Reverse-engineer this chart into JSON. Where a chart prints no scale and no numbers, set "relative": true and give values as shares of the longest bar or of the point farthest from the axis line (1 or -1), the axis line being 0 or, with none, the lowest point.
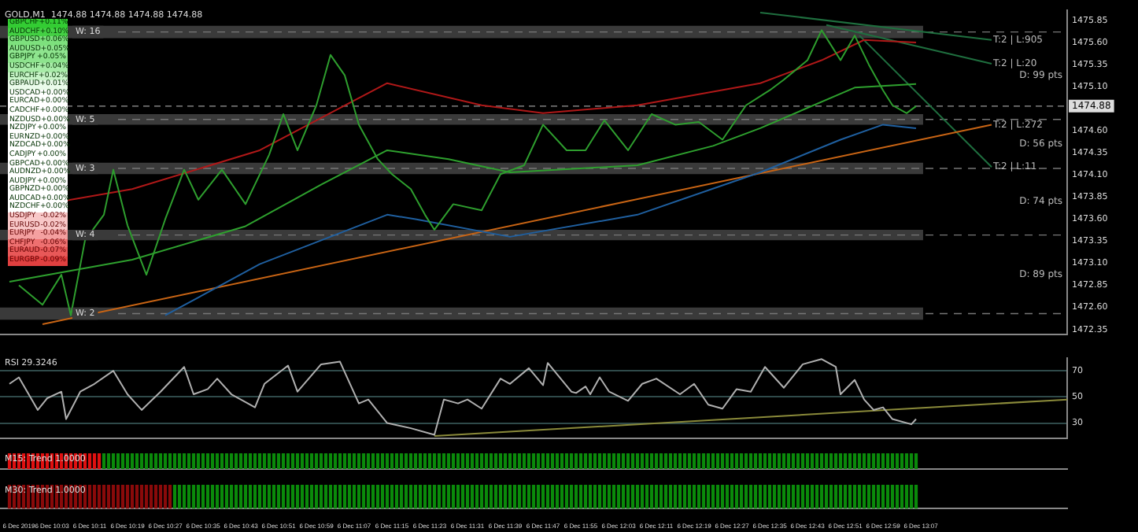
{
  "chart_data": [
    {
      "type": "line",
      "title": "GOLD,M1  1474.88 1474.88 1474.88 1474.88",
      "xlim": [
        "2019-12-06T09:52",
        "2019-12-06T13:38"
      ],
      "ylim": [
        1472.29,
        1475.97
      ],
      "yticks": [
        1475.85,
        {
          "value": 1475.6,
          "label": "1475.60"
        },
        1475.35,
        {
          "value": 1475.1,
          "label": "1475.10"
        },
        {
          "value": 1474.6,
          "label": "1474.60"
        },
        1474.35,
        {
          "value": 1474.1,
          "label": "1474.10"
        },
        1473.85,
        {
          "value": 1473.6,
          "label": "1473.60"
        },
        1473.35,
        {
          "value": 1473.1,
          "label": "1473.10"
        },
        1472.85,
        {
          "value": 1472.6,
          "label": "1472.60"
        },
        1472.35
      ],
      "tick_labels": "y",
      "grid": false,
      "legend": false,
      "marker": "none",
      "line_style": "solid",
      "series": [
        {
          "color": "#2e9e2e",
          "x": [
            "2019-12-06T09:56",
            "2019-12-06T10:01",
            "2019-12-06T10:05",
            "2019-12-06T10:07",
            "2019-12-06T10:10",
            "2019-12-06T10:14",
            "2019-12-06T10:16",
            "2019-12-06T10:19",
            "2019-12-06T10:23",
            "2019-12-06T10:27",
            "2019-12-06T10:31",
            "2019-12-06T10:34",
            "2019-12-06T10:39",
            "2019-12-06T10:44",
            "2019-12-06T10:49",
            "2019-12-06T10:52",
            "2019-12-06T10:55",
            "2019-12-06T10:59",
            "2019-12-06T11:02",
            "2019-12-06T11:05",
            "2019-12-06T11:08",
            "2019-12-06T11:12",
            "2019-12-06T11:15",
            "2019-12-06T11:19",
            "2019-12-06T11:22",
            "2019-12-06T11:24",
            "2019-12-06T11:28",
            "2019-12-06T11:34",
            "2019-12-06T11:38",
            "2019-12-06T11:43",
            "2019-12-06T11:47",
            "2019-12-06T11:52",
            "2019-12-06T11:56",
            "2019-12-06T12:00",
            "2019-12-06T12:05",
            "2019-12-06T12:10",
            "2019-12-06T12:15",
            "2019-12-06T12:20",
            "2019-12-06T12:25",
            "2019-12-06T12:30",
            "2019-12-06T12:35",
            "2019-12-06T12:38",
            "2019-12-06T12:43",
            "2019-12-06T12:46",
            "2019-12-06T12:50",
            "2019-12-06T12:53",
            "2019-12-06T12:56",
            "2019-12-06T12:59",
            "2019-12-06T13:01",
            "2019-12-06T13:04",
            "2019-12-06T13:06"
          ],
          "values": [
            1472.85,
            1472.63,
            1472.97,
            1472.51,
            1473.36,
            1473.65,
            1474.16,
            1473.53,
            1472.97,
            1473.6,
            1474.16,
            1473.82,
            1474.16,
            1473.77,
            1474.33,
            1474.79,
            1474.38,
            1474.89,
            1475.46,
            1475.23,
            1474.67,
            1474.28,
            1474.11,
            1473.94,
            1473.65,
            1473.48,
            1473.77,
            1473.7,
            1474.11,
            1474.21,
            1474.67,
            1474.38,
            1474.38,
            1474.72,
            1474.38,
            1474.79,
            1474.67,
            1474.7,
            1474.5,
            1474.89,
            1475.06,
            1475.18,
            1475.4,
            1475.74,
            1475.4,
            1475.68,
            1475.35,
            1475.06,
            1474.89,
            1474.8,
            1474.88
          ]
        },
        {
          "color": "#b01818",
          "x": [
            "2019-12-06T09:54",
            "2019-12-06T10:20",
            "2019-12-06T10:47",
            "2019-12-06T11:14",
            "2019-12-06T11:34",
            "2019-12-06T11:47",
            "2019-12-06T12:07",
            "2019-12-06T12:33",
            "2019-12-06T12:46",
            "2019-12-06T12:55",
            "2019-12-06T13:06"
          ],
          "values": [
            1473.7,
            1473.94,
            1474.38,
            1475.14,
            1474.89,
            1474.8,
            1474.89,
            1475.14,
            1475.4,
            1475.63,
            1475.6
          ]
        },
        {
          "color": "#2ea02e",
          "x": [
            "2019-12-06T09:54",
            "2019-12-06T10:20",
            "2019-12-06T10:44",
            "2019-12-06T11:00",
            "2019-12-06T11:14",
            "2019-12-06T11:27",
            "2019-12-06T11:40",
            "2019-12-06T12:07",
            "2019-12-06T12:23",
            "2019-12-06T12:33",
            "2019-12-06T12:53",
            "2019-12-06T13:06"
          ],
          "values": [
            1472.89,
            1473.14,
            1473.52,
            1473.99,
            1474.38,
            1474.28,
            1474.13,
            1474.21,
            1474.43,
            1474.63,
            1475.09,
            1475.13
          ]
        },
        {
          "color": "#1f5f9f",
          "x": [
            "2019-12-06T10:27",
            "2019-12-06T10:47",
            "2019-12-06T11:14",
            "2019-12-06T11:20",
            "2019-12-06T11:40",
            "2019-12-06T12:07",
            "2019-12-06T12:33",
            "2019-12-06T12:50",
            "2019-12-06T12:59",
            "2019-12-06T13:06"
          ],
          "values": [
            1472.51,
            1473.09,
            1473.65,
            1473.6,
            1473.4,
            1473.65,
            1474.13,
            1474.5,
            1474.67,
            1474.63
          ]
        },
        {
          "color": "#c86414",
          "x": [
            "2019-12-06T10:01",
            "2019-12-06T13:22"
          ],
          "values": [
            1472.41,
            1474.67
          ]
        },
        {
          "color": "#1f6f3f",
          "x": [
            "2019-12-06T12:33",
            "2019-12-06T13:22"
          ],
          "values": [
            1475.94,
            1475.63
          ]
        },
        {
          "color": "#1f6f3f",
          "x": [
            "2019-12-06T12:47",
            "2019-12-06T13:22"
          ],
          "values": [
            1475.8,
            1475.36
          ]
        },
        {
          "color": "#1f6f3f",
          "x": [
            "2019-12-06T12:54",
            "2019-12-06T13:22"
          ],
          "values": [
            1475.68,
            1474.19
          ]
        }
      ],
      "bands": [
        {
          "axis": "y",
          "from": 1475.65,
          "to": 1475.79,
          "label": "W: 16",
          "color": "#3a3a3a"
        },
        {
          "axis": "y",
          "from": 1474.67,
          "to": 1474.79,
          "label": "W: 5",
          "color": "#3a3a3a"
        },
        {
          "axis": "y",
          "from": 1474.11,
          "to": 1474.24,
          "label": "W: 3",
          "color": "#3a3a3a"
        },
        {
          "axis": "y",
          "from": 1473.36,
          "to": 1473.48,
          "label": "W: 4",
          "color": "#3a3a3a"
        },
        {
          "axis": "y",
          "from": 1472.46,
          "to": 1472.6,
          "label": "W: 2",
          "color": "#3a3a3a"
        }
      ],
      "ref_lines": [
        {
          "axis": "y",
          "value": 1474.88,
          "label": "1474.88",
          "color": "#9a9a9a",
          "line_style": "dashed"
        }
      ],
      "annotations": [
        "D: 99 pts",
        "D: 56 pts",
        "D: 74 pts",
        "D: 89 pts",
        {
          "text": "T:2 | L:905",
          "x": "2019-12-06T13:22",
          "y": 1475.63
        },
        {
          "text": "T:2 | L:20",
          "x": "2019-12-06T13:22",
          "y": 1475.36
        },
        {
          "text": "T:2 | L:272",
          "x": "2019-12-06T13:22",
          "y": 1474.67
        },
        {
          "text": "T:2 | L:11",
          "x": "2019-12-06T13:22",
          "y": 1474.19
        }
      ]
    },
    {
      "type": "line",
      "title": "RSI 29.3246",
      "xlim": [
        "2019-12-06T09:52",
        "2019-12-06T13:38"
      ],
      "ylim": [
        18,
        80
      ],
      "yticks": [
        30,
        50,
        70
      ],
      "tick_labels": "y",
      "grid": "y",
      "legend": false,
      "marker": "none",
      "series": [
        {
          "color": "#b0b0b0",
          "x": [
            "2019-12-06T09:54",
            "2019-12-06T09:56",
            "2019-12-06T10:00",
            "2019-12-06T10:02",
            "2019-12-06T10:05",
            "2019-12-06T10:06",
            "2019-12-06T10:09",
            "2019-12-06T10:12",
            "2019-12-06T10:16",
            "2019-12-06T10:19",
            "2019-12-06T10:22",
            "2019-12-06T10:26",
            "2019-12-06T10:31",
            "2019-12-06T10:33",
            "2019-12-06T10:36",
            "2019-12-06T10:38",
            "2019-12-06T10:41",
            "2019-12-06T10:46",
            "2019-12-06T10:48",
            "2019-12-06T10:53",
            "2019-12-06T10:55",
            "2019-12-06T11:00",
            "2019-12-06T11:04",
            "2019-12-06T11:08",
            "2019-12-06T11:10",
            "2019-12-06T11:14",
            "2019-12-06T11:19",
            "2019-12-06T11:24",
            "2019-12-06T11:26",
            "2019-12-06T11:29",
            "2019-12-06T11:31",
            "2019-12-06T11:34",
            "2019-12-06T11:38",
            "2019-12-06T11:40",
            "2019-12-06T11:44",
            "2019-12-06T11:47",
            "2019-12-06T11:48",
            "2019-12-06T11:53",
            "2019-12-06T11:54",
            "2019-12-06T11:56",
            "2019-12-06T11:57",
            "2019-12-06T11:59",
            "2019-12-06T12:01",
            "2019-12-06T12:05",
            "2019-12-06T12:08",
            "2019-12-06T12:11",
            "2019-12-06T12:16",
            "2019-12-06T12:19",
            "2019-12-06T12:22",
            "2019-12-06T12:25",
            "2019-12-06T12:28",
            "2019-12-06T12:31",
            "2019-12-06T12:34",
            "2019-12-06T12:38",
            "2019-12-06T12:42",
            "2019-12-06T12:46",
            "2019-12-06T12:49",
            "2019-12-06T12:50",
            "2019-12-06T12:53",
            "2019-12-06T12:55",
            "2019-12-06T12:57",
            "2019-12-06T12:59",
            "2019-12-06T13:01",
            "2019-12-06T13:05",
            "2019-12-06T13:06"
          ],
          "values": [
            60,
            65,
            40,
            49,
            54,
            33,
            54,
            60,
            70,
            52,
            40,
            54,
            73,
            52,
            56,
            64,
            52,
            42,
            60,
            74,
            54,
            75,
            77,
            45,
            48,
            30,
            26,
            21,
            48,
            45,
            48,
            41,
            64,
            60,
            72,
            59,
            76,
            54,
            53,
            58,
            52,
            65,
            54,
            47,
            60,
            64,
            52,
            60,
            44,
            41,
            56,
            54,
            73,
            57,
            75,
            79,
            73,
            52,
            63,
            48,
            40,
            42,
            33,
            29,
            33
          ]
        },
        {
          "color": "#8a8a3a",
          "x": [
            "2019-12-06T11:24",
            "2019-12-06T13:38"
          ],
          "values": [
            20,
            48
          ]
        }
      ]
    },
    {
      "type": "bar",
      "title": "M15: Trend 1.0000",
      "xlim": [
        "2019-12-06T09:52",
        "2019-12-06T13:38"
      ],
      "tick_labels": false,
      "relative": true,
      "x": [
        "2019-12-06T09:54",
        "2019-12-06T09:55",
        "2019-12-06T09:56",
        "2019-12-06T09:57",
        "2019-12-06T09:58",
        "2019-12-06T09:59",
        "2019-12-06T10:00",
        "2019-12-06T10:01",
        "2019-12-06T10:02",
        "2019-12-06T10:03",
        "2019-12-06T10:04",
        "2019-12-06T10:05",
        "2019-12-06T10:06",
        "2019-12-06T10:07",
        "2019-12-06T10:08",
        "2019-12-06T10:09",
        "2019-12-06T10:10",
        "2019-12-06T10:11",
        "2019-12-06T10:12",
        "2019-12-06T10:13",
        "2019-12-06T10:14",
        "2019-12-06T10:15",
        "2019-12-06T10:16",
        "2019-12-06T10:17",
        "2019-12-06T10:18",
        "2019-12-06T10:19",
        "2019-12-06T10:20",
        "2019-12-06T10:21",
        "2019-12-06T10:22",
        "2019-12-06T10:23",
        "2019-12-06T10:24",
        "2019-12-06T10:25",
        "2019-12-06T10:26",
        "2019-12-06T10:27",
        "2019-12-06T10:28",
        "2019-12-06T10:29",
        "2019-12-06T10:30",
        "2019-12-06T10:31",
        "2019-12-06T10:32",
        "2019-12-06T10:33",
        "2019-12-06T10:34",
        "2019-12-06T10:35",
        "2019-12-06T10:36",
        "2019-12-06T10:37",
        "2019-12-06T10:38",
        "2019-12-06T10:39",
        "2019-12-06T10:40",
        "2019-12-06T10:41",
        "2019-12-06T10:42",
        "2019-12-06T10:43",
        "2019-12-06T10:44",
        "2019-12-06T10:45",
        "2019-12-06T10:46",
        "2019-12-06T10:47",
        "2019-12-06T10:48",
        "2019-12-06T10:49",
        "2019-12-06T10:50",
        "2019-12-06T10:51",
        "2019-12-06T10:52",
        "2019-12-06T10:53",
        "2019-12-06T10:54",
        "2019-12-06T10:55",
        "2019-12-06T10:56",
        "2019-12-06T10:57",
        "2019-12-06T10:58",
        "2019-12-06T10:59",
        "2019-12-06T11:00",
        "2019-12-06T11:01",
        "2019-12-06T11:02",
        "2019-12-06T11:03",
        "2019-12-06T11:04",
        "2019-12-06T11:05",
        "2019-12-06T11:06",
        "2019-12-06T11:07",
        "2019-12-06T11:08",
        "2019-12-06T11:09",
        "2019-12-06T11:10",
        "2019-12-06T11:11",
        "2019-12-06T11:12",
        "2019-12-06T11:13",
        "2019-12-06T11:14",
        "2019-12-06T11:15",
        "2019-12-06T11:16",
        "2019-12-06T11:17",
        "2019-12-06T11:18",
        "2019-12-06T11:19",
        "2019-12-06T11:20",
        "2019-12-06T11:21",
        "2019-12-06T11:22",
        "2019-12-06T11:23",
        "2019-12-06T11:24",
        "2019-12-06T11:25",
        "2019-12-06T11:26",
        "2019-12-06T11:27",
        "2019-12-06T11:28",
        "2019-12-06T11:29",
        "2019-12-06T11:30",
        "2019-12-06T11:31",
        "2019-12-06T11:32",
        "2019-12-06T11:33",
        "2019-12-06T11:34",
        "2019-12-06T11:35",
        "2019-12-06T11:36",
        "2019-12-06T11:37",
        "2019-12-06T11:38",
        "2019-12-06T11:39",
        "2019-12-06T11:40",
        "2019-12-06T11:41",
        "2019-12-06T11:42",
        "2019-12-06T11:43",
        "2019-12-06T11:44",
        "2019-12-06T11:45",
        "2019-12-06T11:46",
        "2019-12-06T11:47",
        "2019-12-06T11:48",
        "2019-12-06T11:49",
        "2019-12-06T11:50",
        "2019-12-06T11:51",
        "2019-12-06T11:52",
        "2019-12-06T11:53",
        "2019-12-06T11:54",
        "2019-12-06T11:55",
        "2019-12-06T11:56",
        "2019-12-06T11:57",
        "2019-12-06T11:58",
        "2019-12-06T11:59",
        "2019-12-06T12:00",
        "2019-12-06T12:01",
        "2019-12-06T12:02",
        "2019-12-06T12:03",
        "2019-12-06T12:04",
        "2019-12-06T12:05",
        "2019-12-06T12:06",
        "2019-12-06T12:07",
        "2019-12-06T12:08",
        "2019-12-06T12:09",
        "2019-12-06T12:10",
        "2019-12-06T12:11",
        "2019-12-06T12:12",
        "2019-12-06T12:13",
        "2019-12-06T12:14",
        "2019-12-06T12:15",
        "2019-12-06T12:16",
        "2019-12-06T12:17",
        "2019-12-06T12:18",
        "2019-12-06T12:19",
        "2019-12-06T12:20",
        "2019-12-06T12:21",
        "2019-12-06T12:22",
        "2019-12-06T12:23",
        "2019-12-06T12:24",
        "2019-12-06T12:25",
        "2019-12-06T12:26",
        "2019-12-06T12:27",
        "2019-12-06T12:28",
        "2019-12-06T12:29",
        "2019-12-06T12:30",
        "2019-12-06T12:31",
        "2019-12-06T12:32",
        "2019-12-06T12:33",
        "2019-12-06T12:34",
        "2019-12-06T12:35",
        "2019-12-06T12:36",
        "2019-12-06T12:37",
        "2019-12-06T12:38",
        "2019-12-06T12:39",
        "2019-12-06T12:40",
        "2019-12-06T12:41",
        "2019-12-06T12:42",
        "2019-12-06T12:43",
        "2019-12-06T12:44",
        "2019-12-06T12:45",
        "2019-12-06T12:46",
        "2019-12-06T12:47",
        "2019-12-06T12:48",
        "2019-12-06T12:49",
        "2019-12-06T12:50",
        "2019-12-06T12:51",
        "2019-12-06T12:52",
        "2019-12-06T12:53",
        "2019-12-06T12:54",
        "2019-12-06T12:55",
        "2019-12-06T12:56",
        "2019-12-06T12:57",
        "2019-12-06T12:58",
        "2019-12-06T12:59",
        "2019-12-06T13:00",
        "2019-12-06T13:01",
        "2019-12-06T13:02",
        "2019-12-06T13:03",
        "2019-12-06T13:04",
        "2019-12-06T13:05",
        "2019-12-06T13:06"
      ],
      "values": [
        1,
        1,
        1,
        1,
        1,
        1,
        1,
        1,
        1,
        1,
        1,
        1,
        1,
        1,
        1,
        1,
        1,
        1,
        1,
        1,
        1,
        1,
        1,
        1,
        1,
        1,
        1,
        1,
        1,
        1,
        1,
        1,
        1,
        1,
        1,
        1,
        1,
        1,
        1,
        1,
        1,
        1,
        1,
        1,
        1,
        1,
        1,
        1,
        1,
        1,
        1,
        1,
        1,
        1,
        1,
        1,
        1,
        1,
        1,
        1,
        1,
        1,
        1,
        1,
        1,
        1,
        1,
        1,
        1,
        1,
        1,
        1,
        1,
        1,
        1,
        1,
        1,
        1,
        1,
        1,
        1,
        1,
        1,
        1,
        1,
        1,
        1,
        1,
        1,
        1,
        1,
        1,
        1,
        1,
        1,
        1,
        1,
        1,
        1,
        1,
        1,
        1,
        1,
        1,
        1,
        1,
        1,
        1,
        1,
        1,
        1,
        1,
        1,
        1,
        1,
        1,
        1,
        1,
        1,
        1,
        1,
        1,
        1,
        1,
        1,
        1,
        1,
        1,
        1,
        1,
        1,
        1,
        1,
        1,
        1,
        1,
        1,
        1,
        1,
        1,
        1,
        1,
        1,
        1,
        1,
        1,
        1,
        1,
        1,
        1,
        1,
        1,
        1,
        1,
        1,
        1,
        1,
        1,
        1,
        1,
        1,
        1,
        1,
        1,
        1,
        1,
        1,
        1,
        1,
        1,
        1,
        1,
        1,
        1,
        1,
        1,
        1,
        1,
        1,
        1,
        1,
        1,
        1,
        1,
        1,
        1,
        1,
        1,
        1,
        1,
        1,
        1,
        1
      ],
      "colors": [
        "#e01010",
        "#e01010",
        "#e01010",
        "#e01010",
        "#e01010",
        "#e01010",
        "#e01010",
        "#e01010",
        "#e01010",
        "#e01010",
        "#e01010",
        "#e01010",
        "#e01010",
        "#e01010",
        "#e01010",
        "#e01010",
        "#e01010",
        "#e01010",
        "#e01010",
        "#e01010",
        "#0a8a0a",
        "#0a8a0a",
        "#0a8a0a",
        "#0a8a0a",
        "#0a8a0a",
        "#0a8a0a",
        "#0a8a0a",
        "#0a8a0a",
        "#0a8a0a",
        "#0a8a0a",
        "#0a8a0a",
        "#0a8a0a",
        "#0a8a0a",
        "#0a8a0a",
        "#0a8a0a",
        "#0a8a0a",
        "#0a8a0a",
        "#0a8a0a",
        "#0a8a0a",
        "#0a8a0a",
        "#0a8a0a",
        "#0a8a0a",
        "#0a8a0a",
        "#0a8a0a",
        "#0a8a0a",
        "#0a8a0a",
        "#0a8a0a",
        "#0a8a0a",
        "#0a8a0a",
        "#0a8a0a",
        "#0a8a0a",
        "#0a8a0a",
        "#0a8a0a",
        "#0a8a0a",
        "#0a8a0a",
        "#0a8a0a",
        "#0a8a0a",
        "#0a8a0a",
        "#0a8a0a",
        "#0a8a0a",
        "#0a8a0a",
        "#0a8a0a",
        "#0a8a0a",
        "#0a8a0a",
        "#0a8a0a",
        "#0a8a0a",
        "#0a8a0a",
        "#0a8a0a",
        "#0a8a0a",
        "#0a8a0a",
        "#0a8a0a",
        "#0a8a0a",
        "#0a8a0a",
        "#0a8a0a",
        "#0a8a0a",
        "#0a8a0a",
        "#0a8a0a",
        "#0a8a0a",
        "#0a8a0a",
        "#0a8a0a",
        "#0a8a0a",
        "#0a8a0a",
        "#0a8a0a",
        "#0a8a0a",
        "#0a8a0a",
        "#0a8a0a",
        "#0a8a0a",
        "#0a8a0a",
        "#0a8a0a",
        "#0a8a0a",
        "#0a8a0a",
        "#0a8a0a",
        "#0a8a0a",
        "#0a8a0a",
        "#0a8a0a",
        "#0a8a0a",
        "#0a8a0a",
        "#0a8a0a",
        "#0a8a0a",
        "#0a8a0a",
        "#0a8a0a",
        "#0a8a0a",
        "#0a8a0a",
        "#0a8a0a",
        "#0a8a0a",
        "#0a8a0a",
        "#0a8a0a",
        "#0a8a0a",
        "#0a8a0a",
        "#0a8a0a",
        "#0a8a0a",
        "#0a8a0a",
        "#0a8a0a",
        "#0a8a0a",
        "#0a8a0a",
        "#0a8a0a",
        "#0a8a0a",
        "#0a8a0a",
        "#0a8a0a",
        "#0a8a0a",
        "#0a8a0a",
        "#0a8a0a",
        "#0a8a0a",
        "#0a8a0a",
        "#0a8a0a",
        "#0a8a0a",
        "#0a8a0a",
        "#0a8a0a",
        "#0a8a0a",
        "#0a8a0a",
        "#0a8a0a",
        "#0a8a0a",
        "#0a8a0a",
        "#0a8a0a",
        "#0a8a0a",
        "#0a8a0a",
        "#0a8a0a",
        "#0a8a0a",
        "#0a8a0a",
        "#0a8a0a",
        "#0a8a0a",
        "#0a8a0a",
        "#0a8a0a",
        "#0a8a0a",
        "#0a8a0a",
        "#0a8a0a",
        "#0a8a0a",
        "#0a8a0a",
        "#0a8a0a",
        "#0a8a0a",
        "#0a8a0a",
        "#0a8a0a",
        "#0a8a0a",
        "#0a8a0a",
        "#0a8a0a",
        "#0a8a0a",
        "#0a8a0a",
        "#0a8a0a",
        "#0a8a0a",
        "#0a8a0a",
        "#0a8a0a",
        "#0a8a0a",
        "#0a8a0a",
        "#0a8a0a",
        "#0a8a0a",
        "#0a8a0a",
        "#0a8a0a",
        "#0a8a0a",
        "#0a8a0a",
        "#0a8a0a",
        "#0a8a0a",
        "#0a8a0a",
        "#0a8a0a",
        "#0a8a0a",
        "#0a8a0a",
        "#0a8a0a",
        "#0a8a0a",
        "#0a8a0a",
        "#0a8a0a",
        "#0a8a0a",
        "#0a8a0a",
        "#0a8a0a",
        "#0a8a0a",
        "#0a8a0a",
        "#0a8a0a",
        "#0a8a0a",
        "#0a8a0a",
        "#0a8a0a",
        "#0a8a0a",
        "#0a8a0a",
        "#0a8a0a",
        "#0a8a0a",
        "#0a8a0a"
      ]
    },
    {
      "type": "bar",
      "title": "M30: Trend 1.0000",
      "xlim": [
        "2019-12-06T09:52",
        "2019-12-06T13:38"
      ],
      "tick_labels": "x",
      "relative": true,
      "x": [
        "2019-12-06T09:54",
        "2019-12-06T09:55",
        "2019-12-06T09:56",
        "2019-12-06T09:57",
        "2019-12-06T09:58",
        "2019-12-06T09:59",
        "2019-12-06T10:00",
        "2019-12-06T10:01",
        "2019-12-06T10:02",
        "2019-12-06T10:03",
        "2019-12-06T10:04",
        "2019-12-06T10:05",
        "2019-12-06T10:06",
        "2019-12-06T10:07",
        "2019-12-06T10:08",
        "2019-12-06T10:09",
        "2019-12-06T10:10",
        "2019-12-06T10:11",
        "2019-12-06T10:12",
        "2019-12-06T10:13",
        "2019-12-06T10:14",
        "2019-12-06T10:15",
        "2019-12-06T10:16",
        "2019-12-06T10:17",
        "2019-12-06T10:18",
        "2019-12-06T10:19",
        "2019-12-06T10:20",
        "2019-12-06T10:21",
        "2019-12-06T10:22",
        "2019-12-06T10:23",
        "2019-12-06T10:24",
        "2019-12-06T10:25",
        "2019-12-06T10:26",
        "2019-12-06T10:27",
        "2019-12-06T10:28",
        "2019-12-06T10:29",
        "2019-12-06T10:30",
        "2019-12-06T10:31",
        "2019-12-06T10:32",
        "2019-12-06T10:33",
        "2019-12-06T10:34",
        "2019-12-06T10:35",
        "2019-12-06T10:36",
        "2019-12-06T10:37",
        "2019-12-06T10:38",
        "2019-12-06T10:39",
        "2019-12-06T10:40",
        "2019-12-06T10:41",
        "2019-12-06T10:42",
        "2019-12-06T10:43",
        "2019-12-06T10:44",
        "2019-12-06T10:45",
        "2019-12-06T10:46",
        "2019-12-06T10:47",
        "2019-12-06T10:48",
        "2019-12-06T10:49",
        "2019-12-06T10:50",
        "2019-12-06T10:51",
        "2019-12-06T10:52",
        "2019-12-06T10:53",
        "2019-12-06T10:54",
        "2019-12-06T10:55",
        "2019-12-06T10:56",
        "2019-12-06T10:57",
        "2019-12-06T10:58",
        "2019-12-06T10:59",
        "2019-12-06T11:00",
        "2019-12-06T11:01",
        "2019-12-06T11:02",
        "2019-12-06T11:03",
        "2019-12-06T11:04",
        "2019-12-06T11:05",
        "2019-12-06T11:06",
        "2019-12-06T11:07",
        "2019-12-06T11:08",
        "2019-12-06T11:09",
        "2019-12-06T11:10",
        "2019-12-06T11:11",
        "2019-12-06T11:12",
        "2019-12-06T11:13",
        "2019-12-06T11:14",
        "2019-12-06T11:15",
        "2019-12-06T11:16",
        "2019-12-06T11:17",
        "2019-12-06T11:18",
        "2019-12-06T11:19",
        "2019-12-06T11:20",
        "2019-12-06T11:21",
        "2019-12-06T11:22",
        "2019-12-06T11:23",
        "2019-12-06T11:24",
        "2019-12-06T11:25",
        "2019-12-06T11:26",
        "2019-12-06T11:27",
        "2019-12-06T11:28",
        "2019-12-06T11:29",
        "2019-12-06T11:30",
        "2019-12-06T11:31",
        "2019-12-06T11:32",
        "2019-12-06T11:33",
        "2019-12-06T11:34",
        "2019-12-06T11:35",
        "2019-12-06T11:36",
        "2019-12-06T11:37",
        "2019-12-06T11:38",
        "2019-12-06T11:39",
        "2019-12-06T11:40",
        "2019-12-06T11:41",
        "2019-12-06T11:42",
        "2019-12-06T11:43",
        "2019-12-06T11:44",
        "2019-12-06T11:45",
        "2019-12-06T11:46",
        "2019-12-06T11:47",
        "2019-12-06T11:48",
        "2019-12-06T11:49",
        "2019-12-06T11:50",
        "2019-12-06T11:51",
        "2019-12-06T11:52",
        "2019-12-06T11:53",
        "2019-12-06T11:54",
        "2019-12-06T11:55",
        "2019-12-06T11:56",
        "2019-12-06T11:57",
        "2019-12-06T11:58",
        "2019-12-06T11:59",
        "2019-12-06T12:00",
        "2019-12-06T12:01",
        "2019-12-06T12:02",
        "2019-12-06T12:03",
        "2019-12-06T12:04",
        "2019-12-06T12:05",
        "2019-12-06T12:06",
        "2019-12-06T12:07",
        "2019-12-06T12:08",
        "2019-12-06T12:09",
        "2019-12-06T12:10",
        "2019-12-06T12:11",
        "2019-12-06T12:12",
        "2019-12-06T12:13",
        "2019-12-06T12:14",
        "2019-12-06T12:15",
        "2019-12-06T12:16",
        "2019-12-06T12:17",
        "2019-12-06T12:18",
        "2019-12-06T12:19",
        "2019-12-06T12:20",
        "2019-12-06T12:21",
        "2019-12-06T12:22",
        "2019-12-06T12:23",
        "2019-12-06T12:24",
        "2019-12-06T12:25",
        "2019-12-06T12:26",
        "2019-12-06T12:27",
        "2019-12-06T12:28",
        "2019-12-06T12:29",
        "2019-12-06T12:30",
        "2019-12-06T12:31",
        "2019-12-06T12:32",
        "2019-12-06T12:33",
        "2019-12-06T12:34",
        "2019-12-06T12:35",
        "2019-12-06T12:36",
        "2019-12-06T12:37",
        "2019-12-06T12:38",
        "2019-12-06T12:39",
        "2019-12-06T12:40",
        "2019-12-06T12:41",
        "2019-12-06T12:42",
        "2019-12-06T12:43",
        "2019-12-06T12:44",
        "2019-12-06T12:45",
        "2019-12-06T12:46",
        "2019-12-06T12:47",
        "2019-12-06T12:48",
        "2019-12-06T12:49",
        "2019-12-06T12:50",
        "2019-12-06T12:51",
        "2019-12-06T12:52",
        "2019-12-06T12:53",
        "2019-12-06T12:54",
        "2019-12-06T12:55",
        "2019-12-06T12:56",
        "2019-12-06T12:57",
        "2019-12-06T12:58",
        "2019-12-06T12:59",
        "2019-12-06T13:00",
        "2019-12-06T13:01",
        "2019-12-06T13:02",
        "2019-12-06T13:03",
        "2019-12-06T13:04",
        "2019-12-06T13:05",
        "2019-12-06T13:06"
      ],
      "values": [
        1,
        1,
        1,
        1,
        1,
        1,
        1,
        1,
        1,
        1,
        1,
        1,
        1,
        1,
        1,
        1,
        1,
        1,
        1,
        1,
        1,
        1,
        1,
        1,
        1,
        1,
        1,
        1,
        1,
        1,
        1,
        1,
        1,
        1,
        1,
        1,
        1,
        1,
        1,
        1,
        1,
        1,
        1,
        1,
        1,
        1,
        1,
        1,
        1,
        1,
        1,
        1,
        1,
        1,
        1,
        1,
        1,
        1,
        1,
        1,
        1,
        1,
        1,
        1,
        1,
        1,
        1,
        1,
        1,
        1,
        1,
        1,
        1,
        1,
        1,
        1,
        1,
        1,
        1,
        1,
        1,
        1,
        1,
        1,
        1,
        1,
        1,
        1,
        1,
        1,
        1,
        1,
        1,
        1,
        1,
        1,
        1,
        1,
        1,
        1,
        1,
        1,
        1,
        1,
        1,
        1,
        1,
        1,
        1,
        1,
        1,
        1,
        1,
        1,
        1,
        1,
        1,
        1,
        1,
        1,
        1,
        1,
        1,
        1,
        1,
        1,
        1,
        1,
        1,
        1,
        1,
        1,
        1,
        1,
        1,
        1,
        1,
        1,
        1,
        1,
        1,
        1,
        1,
        1,
        1,
        1,
        1,
        1,
        1,
        1,
        1,
        1,
        1,
        1,
        1,
        1,
        1,
        1,
        1,
        1,
        1,
        1,
        1,
        1,
        1,
        1,
        1,
        1,
        1,
        1,
        1,
        1,
        1,
        1,
        1,
        1,
        1,
        1,
        1,
        1,
        1,
        1,
        1,
        1,
        1,
        1,
        1,
        1,
        1,
        1,
        1,
        1,
        1
      ],
      "colors": [
        "#8a0a0a",
        "#8a0a0a",
        "#8a0a0a",
        "#8a0a0a",
        "#8a0a0a",
        "#8a0a0a",
        "#8a0a0a",
        "#8a0a0a",
        "#8a0a0a",
        "#8a0a0a",
        "#8a0a0a",
        "#8a0a0a",
        "#8a0a0a",
        "#8a0a0a",
        "#8a0a0a",
        "#8a0a0a",
        "#8a0a0a",
        "#8a0a0a",
        "#8a0a0a",
        "#8a0a0a",
        "#8a0a0a",
        "#8a0a0a",
        "#8a0a0a",
        "#8a0a0a",
        "#8a0a0a",
        "#8a0a0a",
        "#8a0a0a",
        "#8a0a0a",
        "#8a0a0a",
        "#8a0a0a",
        "#8a0a0a",
        "#8a0a0a",
        "#8a0a0a",
        "#8a0a0a",
        "#8a0a0a",
        "#0a8a0a",
        "#0a8a0a",
        "#0a8a0a",
        "#0a8a0a",
        "#0a8a0a",
        "#0a8a0a",
        "#0a8a0a",
        "#0a8a0a",
        "#0a8a0a",
        "#0a8a0a",
        "#0a8a0a",
        "#0a8a0a",
        "#0a8a0a",
        "#0a8a0a",
        "#0a8a0a",
        "#0a8a0a",
        "#0a8a0a",
        "#0a8a0a",
        "#0a8a0a",
        "#0a8a0a",
        "#0a8a0a",
        "#0a8a0a",
        "#0a8a0a",
        "#0a8a0a",
        "#0a8a0a",
        "#0a8a0a",
        "#0a8a0a",
        "#0a8a0a",
        "#0a8a0a",
        "#0a8a0a",
        "#0a8a0a",
        "#0a8a0a",
        "#0a8a0a",
        "#0a8a0a",
        "#0a8a0a",
        "#0a8a0a",
        "#0a8a0a",
        "#0a8a0a",
        "#0a8a0a",
        "#0a8a0a",
        "#0a8a0a",
        "#0a8a0a",
        "#0a8a0a",
        "#0a8a0a",
        "#0a8a0a",
        "#0a8a0a",
        "#0a8a0a",
        "#0a8a0a",
        "#0a8a0a",
        "#0a8a0a",
        "#0a8a0a",
        "#0a8a0a",
        "#0a8a0a",
        "#0a8a0a",
        "#0a8a0a",
        "#0a8a0a",
        "#0a8a0a",
        "#0a8a0a",
        "#0a8a0a",
        "#0a8a0a",
        "#0a8a0a",
        "#0a8a0a",
        "#0a8a0a",
        "#0a8a0a",
        "#0a8a0a",
        "#0a8a0a",
        "#0a8a0a",
        "#0a8a0a",
        "#0a8a0a",
        "#0a8a0a",
        "#0a8a0a",
        "#0a8a0a",
        "#0a8a0a",
        "#0a8a0a",
        "#0a8a0a",
        "#0a8a0a",
        "#0a8a0a",
        "#0a8a0a",
        "#0a8a0a",
        "#0a8a0a",
        "#0a8a0a",
        "#0a8a0a",
        "#0a8a0a",
        "#0a8a0a",
        "#0a8a0a",
        "#0a8a0a",
        "#0a8a0a",
        "#0a8a0a",
        "#0a8a0a",
        "#0a8a0a",
        "#0a8a0a",
        "#0a8a0a",
        "#0a8a0a",
        "#0a8a0a",
        "#0a8a0a",
        "#0a8a0a",
        "#0a8a0a",
        "#0a8a0a",
        "#0a8a0a",
        "#0a8a0a",
        "#0a8a0a",
        "#0a8a0a",
        "#0a8a0a",
        "#0a8a0a",
        "#0a8a0a",
        "#0a8a0a",
        "#0a8a0a",
        "#0a8a0a",
        "#0a8a0a",
        "#0a8a0a",
        "#0a8a0a",
        "#0a8a0a",
        "#0a8a0a",
        "#0a8a0a",
        "#0a8a0a",
        "#0a8a0a",
        "#0a8a0a",
        "#0a8a0a",
        "#0a8a0a",
        "#0a8a0a",
        "#0a8a0a",
        "#0a8a0a",
        "#0a8a0a",
        "#0a8a0a",
        "#0a8a0a",
        "#0a8a0a",
        "#0a8a0a",
        "#0a8a0a",
        "#0a8a0a",
        "#0a8a0a",
        "#0a8a0a",
        "#0a8a0a",
        "#0a8a0a",
        "#0a8a0a",
        "#0a8a0a",
        "#0a8a0a",
        "#0a8a0a",
        "#0a8a0a",
        "#0a8a0a",
        "#0a8a0a",
        "#0a8a0a",
        "#0a8a0a",
        "#0a8a0a",
        "#0a8a0a",
        "#0a8a0a",
        "#0a8a0a",
        "#0a8a0a",
        "#0a8a0a",
        "#0a8a0a",
        "#0a8a0a",
        "#0a8a0a",
        "#0a8a0a",
        "#0a8a0a",
        "#0a8a0a",
        "#0a8a0a",
        "#0a8a0a",
        "#0a8a0a",
        "#0a8a0a"
      ],
      "xticks": [
        {
          "value": "2019-12-06T09:56",
          "label": "6 Dec 2019"
        },
        {
          "value": "2019-12-06T10:03",
          "label": "6 Dec 10:03"
        },
        {
          "value": "2019-12-06T10:11",
          "label": "6 Dec 10:11"
        },
        {
          "value": "2019-12-06T10:19",
          "label": "6 Dec 10:19"
        },
        {
          "value": "2019-12-06T10:27",
          "label": "6 Dec 10:27"
        },
        {
          "value": "2019-12-06T10:35",
          "label": "6 Dec 10:35"
        },
        {
          "value": "2019-12-06T10:43",
          "label": "6 Dec 10:43"
        },
        {
          "value": "2019-12-06T10:51",
          "label": "6 Dec 10:51"
        },
        {
          "value": "2019-12-06T10:59",
          "label": "6 Dec 10:59"
        },
        {
          "value": "2019-12-06T11:07",
          "label": "6 Dec 11:07"
        },
        {
          "value": "2019-12-06T11:15",
          "label": "6 Dec 11:15"
        },
        {
          "value": "2019-12-06T11:23",
          "label": "6 Dec 11:23"
        },
        {
          "value": "2019-12-06T11:31",
          "label": "6 Dec 11:31"
        },
        {
          "value": "2019-12-06T11:39",
          "label": "6 Dec 11:39"
        },
        {
          "value": "2019-12-06T11:47",
          "label": "6 Dec 11:47"
        },
        {
          "value": "2019-12-06T11:55",
          "label": "6 Dec 11:55"
        },
        {
          "value": "2019-12-06T12:03",
          "label": "6 Dec 12:03"
        },
        {
          "value": "2019-12-06T12:11",
          "label": "6 Dec 12:11"
        },
        {
          "value": "2019-12-06T12:19",
          "label": "6 Dec 12:19"
        },
        {
          "value": "2019-12-06T12:27",
          "label": "6 Dec 12:27"
        },
        {
          "value": "2019-12-06T12:35",
          "label": "6 Dec 12:35"
        },
        {
          "value": "2019-12-06T12:43",
          "label": "6 Dec 12:43"
        },
        {
          "value": "2019-12-06T12:51",
          "label": "6 Dec 12:51"
        },
        {
          "value": "2019-12-06T12:59",
          "label": "6 Dec 12:59"
        },
        {
          "value": "2019-12-06T13:07",
          "label": "6 Dec 13:07"
        }
      ]
    },
    {
      "type": "other",
      "categories": [
        "GBPCHF",
        "AUDCHF",
        "GBPUSD",
        "AUDUSD",
        "GBPJPY",
        "USDCHF",
        "EURCHF",
        "GBPAUD",
        "USDCAD",
        "EURCAD",
        "CADCHF",
        "NZDUSD",
        "NZDJPY",
        "EURNZD",
        "NZDCAD",
        "CADJPY",
        "GBPCAD",
        "AUDNZD",
        "AUDJPY",
        "GBPNZD",
        "AUDCAD",
        "NZDCHF",
        "USDJPY",
        "EURUSD",
        "EURJPY",
        "CHFJPY",
        "EURAUD",
        "EURGBP"
      ],
      "values": [
        0.11,
        0.1,
        0.06,
        0.05,
        0.05,
        0.04,
        0.02,
        0.01,
        0,
        0,
        0,
        0,
        0,
        0,
        0,
        0,
        0,
        0,
        0,
        0,
        0,
        0,
        -0.02,
        -0.02,
        -0.04,
        -0.06,
        -0.07,
        -0.09
      ],
      "value_labels": [
        "+0.11%",
        "+0.10%",
        "+0.06%",
        "+0.05%",
        "+0.05%",
        "+0.04%",
        "+0.02%",
        "+0.01%",
        "+0.00%",
        "+0.00%",
        "+0.00%",
        "+0.00%",
        "+0.00%",
        "+0.00%",
        "+0.00%",
        "+0.00%",
        "+0.00%",
        "+0.00%",
        "+0.00%",
        "+0.00%",
        "+0.00%",
        "+0.00%",
        "-0.02%",
        "-0.02%",
        "-0.04%",
        "-0.06%",
        "-0.07%",
        "-0.09%"
      ],
      "colors": [
        "#33cc33",
        "#44d044",
        "#7de07d",
        "#8ee48e",
        "#8ee48e",
        "#a8eca8",
        "#c8f4c8",
        "#ebfbeb",
        "#ffffff",
        "#ffffff",
        "#ffffff",
        "#ffffff",
        "#ffffff",
        "#ffffff",
        "#ffffff",
        "#ffffff",
        "#ffffff",
        "#ffffff",
        "#ffffff",
        "#ffffff",
        "#ffffff",
        "#ffffff",
        "#f8c8c8",
        "#f8c8c8",
        "#f4a0a0",
        "#ee7070",
        "#e85858",
        "#e04040"
      ]
    }
  ]
}
